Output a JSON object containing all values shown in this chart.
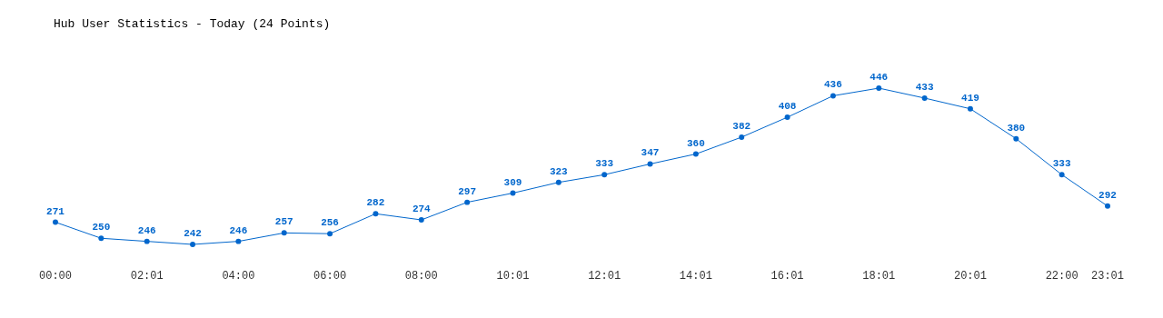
{
  "chart_data": {
    "type": "line",
    "title": "Hub User Statistics - Today (24 Points)",
    "categories": [
      "00:00",
      null,
      "02:01",
      null,
      "04:00",
      null,
      "06:00",
      null,
      "08:00",
      null,
      "10:01",
      null,
      "12:01",
      null,
      "14:01",
      null,
      "16:01",
      null,
      "18:01",
      null,
      "20:01",
      null,
      "22:00",
      "23:01"
    ],
    "series": [
      {
        "color": "#0066cc",
        "values": [
          271,
          250,
          246,
          242,
          246,
          257,
          256,
          282,
          274,
          297,
          309,
          323,
          333,
          347,
          360,
          382,
          408,
          436,
          446,
          433,
          419,
          380,
          333,
          292
        ]
      }
    ],
    "data_labels": true,
    "marker": "circle"
  }
}
